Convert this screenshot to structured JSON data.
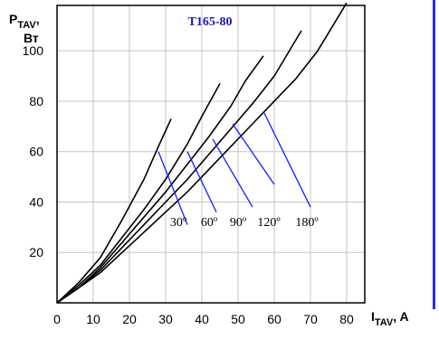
{
  "chart_data": {
    "type": "line",
    "title": "T165-80",
    "ylabel_main": "P",
    "ylabel_sub": "TAV",
    "ylabel_sep": ",",
    "ylabel_unit": "Вт",
    "xlabel_main": "I",
    "xlabel_sub": "TAV",
    "xlabel_unit": ", A",
    "xlim": [
      0,
      85
    ],
    "ylim": [
      0,
      118
    ],
    "x_ticks": [
      "0",
      "10",
      "20",
      "30",
      "40",
      "50",
      "60",
      "70",
      "80"
    ],
    "y_ticks": [
      "20",
      "40",
      "60",
      "80",
      "100"
    ],
    "grid": true,
    "series": [
      {
        "name": "30º",
        "x": [
          0,
          6,
          12,
          18,
          24,
          28,
          31.5
        ],
        "y": [
          0,
          8,
          18,
          33,
          49,
          62,
          73
        ]
      },
      {
        "name": "60º",
        "x": [
          0,
          6,
          12,
          18,
          24,
          30,
          36,
          40,
          45
        ],
        "y": [
          0,
          7,
          15,
          26,
          37,
          49,
          63,
          74,
          87
        ]
      },
      {
        "name": "90º",
        "x": [
          0,
          6,
          12,
          18,
          24,
          30,
          36,
          42,
          48,
          52,
          57
        ],
        "y": [
          0,
          6,
          14,
          24,
          34,
          44,
          55,
          66,
          78,
          88,
          98
        ]
      },
      {
        "name": "120º",
        "x": [
          0,
          6,
          12,
          18,
          24,
          30,
          36,
          42,
          48,
          54,
          60,
          67.5
        ],
        "y": [
          0,
          6,
          13,
          22,
          31,
          40,
          49,
          59,
          69,
          79,
          90,
          108
        ]
      },
      {
        "name": "180º",
        "x": [
          0,
          6,
          12,
          18,
          24,
          30,
          36,
          42,
          48,
          54,
          60,
          66,
          72,
          80
        ],
        "y": [
          0,
          6,
          12,
          20,
          28,
          36,
          44,
          53,
          62,
          71,
          80,
          89,
          100,
          119
        ]
      }
    ],
    "annotations": [
      {
        "label": "30º",
        "from": [
          28,
          60
        ],
        "to": [
          36,
          31
        ]
      },
      {
        "label": "60º",
        "from": [
          36,
          60
        ],
        "to": [
          44,
          36
        ]
      },
      {
        "label": "90º",
        "from": [
          43,
          65
        ],
        "to": [
          54,
          38
        ]
      },
      {
        "label": "120º",
        "from": [
          48.5,
          71
        ],
        "to": [
          60,
          47
        ]
      },
      {
        "label": "180º",
        "from": [
          57,
          76
        ],
        "to": [
          70,
          38
        ]
      }
    ],
    "angle_labels": [
      {
        "text": "30º",
        "x": 33.5,
        "y": 30.5
      },
      {
        "text": "60º",
        "x": 42,
        "y": 30.5
      },
      {
        "text": "90º",
        "x": 50,
        "y": 30.5
      },
      {
        "text": "120º",
        "x": 58.5,
        "y": 30.5
      },
      {
        "text": "180º",
        "x": 69,
        "y": 30.5
      }
    ]
  },
  "colors": {
    "curve": "#000000",
    "annotation": "#1a1aff",
    "title": "#1a1aa8",
    "grid": "#c4c4c4",
    "frame": "#000000",
    "accent_bar": "#2a2ae0"
  }
}
